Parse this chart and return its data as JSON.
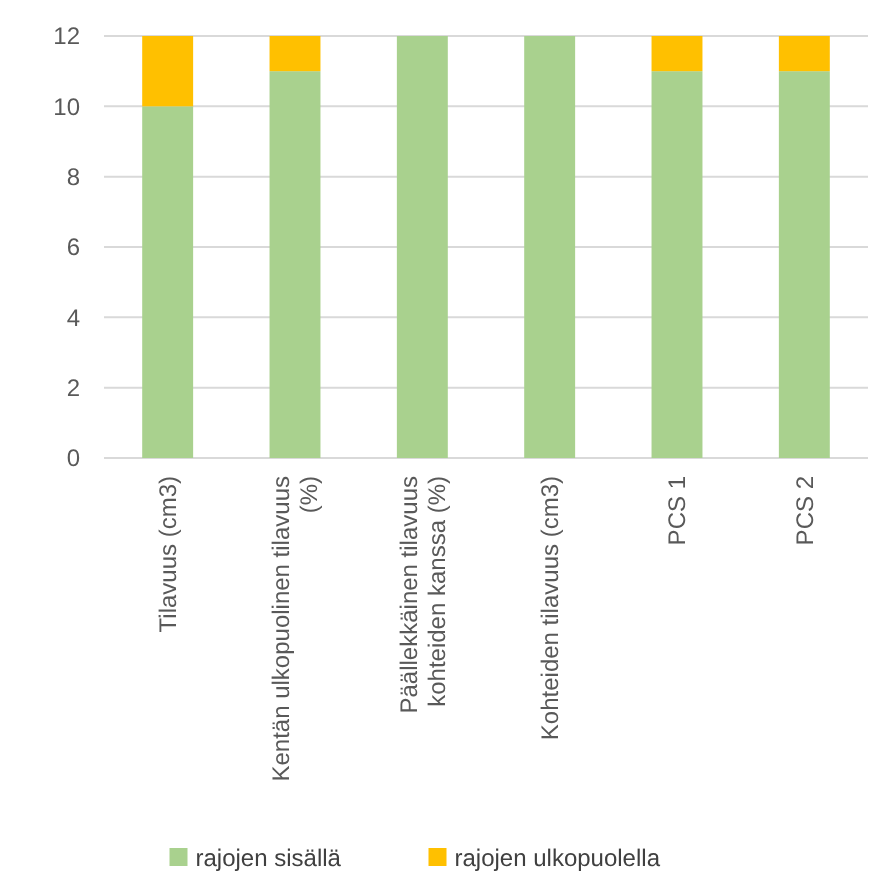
{
  "chart_data": {
    "type": "bar",
    "stacked": true,
    "categories": [
      "Tilavuus (cm3)",
      "Kentän ulkopuolinen tilavuus (%)",
      "Päällekkäinen tilavuus kohteiden kanssa (%)",
      "Kohteiden tilavuus (cm3)",
      "PCS 1",
      "PCS 2"
    ],
    "series": [
      {
        "name": "rajojen sisällä",
        "color": "#a9d18e",
        "values": [
          10,
          11,
          12,
          12,
          11,
          11
        ]
      },
      {
        "name": "rajojen ulkopuolella",
        "color": "#ffc000",
        "values": [
          2,
          1,
          0,
          0,
          1,
          1
        ]
      }
    ],
    "ylim": [
      0,
      12
    ],
    "yticks": [
      0,
      2,
      4,
      6,
      8,
      10,
      12
    ],
    "grid": "y",
    "legend": "bottom"
  }
}
